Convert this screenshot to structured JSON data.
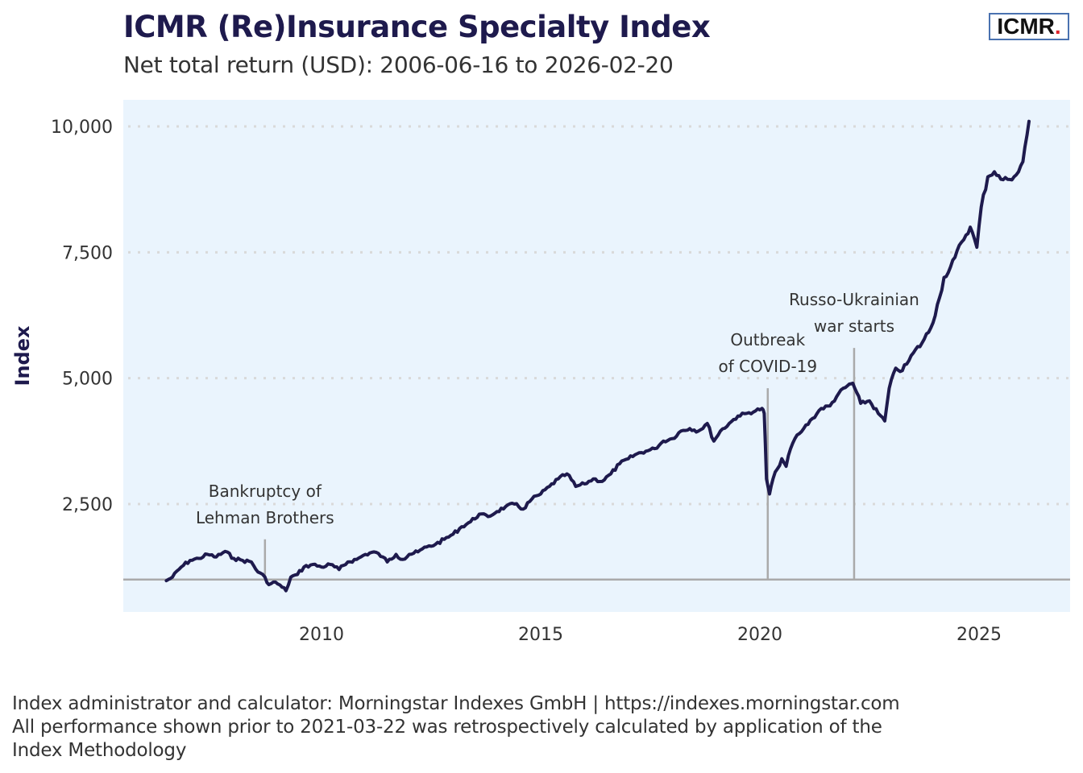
{
  "header": {
    "title": "ICMR (Re)Insurance Specialty Index",
    "subtitle": "Net total return (USD): 2006-06-16 to 2026-02-20",
    "logo_text": "ICMR",
    "logo_dot": "."
  },
  "footer": {
    "lines": [
      "Index administrator and calculator: Morningstar Indexes GmbH | https://indexes.morningstar.com",
      "All performance shown prior to 2021-03-22 was retrospectively calculated by application of the",
      "Index Methodology"
    ]
  },
  "colors": {
    "series": "#1e1a4d",
    "plot_background": "#eaf4fd",
    "gridline": "#d9d9d9",
    "event_line": "#aaaaaa",
    "baseline": "#aaaaaa",
    "logo_border": "#4a72b0",
    "logo_dot": "#e0242b"
  },
  "chart_data": {
    "type": "line",
    "title": "ICMR (Re)Insurance Specialty Index",
    "subtitle": "Net total return (USD): 2006-06-16 to 2026-02-20",
    "xlabel": "",
    "ylabel": "Index",
    "xlim": [
      2005.8,
      2027.4
    ],
    "ylim": [
      350,
      10550
    ],
    "x_ticks": [
      2010,
      2015,
      2020,
      2025
    ],
    "x_tick_labels": [
      "2010",
      "2015",
      "2020",
      "2025"
    ],
    "y_ticks": [
      2500,
      5000,
      7500,
      10000
    ],
    "y_tick_labels": [
      "2,500",
      "5,000",
      "7,500",
      "10,000"
    ],
    "grid": "horizontal dotted",
    "baseline": 1000,
    "legend": "none",
    "series": [
      {
        "name": "ICMR (Re)Insurance Specialty Index",
        "x": [
          2006.46,
          2006.6,
          2006.8,
          2007.0,
          2007.2,
          2007.4,
          2007.6,
          2007.8,
          2008.0,
          2008.2,
          2008.4,
          2008.55,
          2008.71,
          2008.8,
          2008.95,
          2009.1,
          2009.19,
          2009.3,
          2009.45,
          2009.6,
          2009.8,
          2010.0,
          2010.2,
          2010.4,
          2010.6,
          2010.8,
          2011.0,
          2011.2,
          2011.4,
          2011.5,
          2011.7,
          2011.85,
          2012.0,
          2012.2,
          2012.4,
          2012.6,
          2012.8,
          2013.0,
          2013.2,
          2013.4,
          2013.6,
          2013.8,
          2014.0,
          2014.2,
          2014.4,
          2014.6,
          2014.8,
          2015.0,
          2015.2,
          2015.4,
          2015.6,
          2015.8,
          2016.0,
          2016.2,
          2016.4,
          2016.6,
          2016.8,
          2017.0,
          2017.2,
          2017.4,
          2017.6,
          2017.8,
          2018.0,
          2018.2,
          2018.4,
          2018.6,
          2018.8,
          2018.95,
          2019.1,
          2019.3,
          2019.5,
          2019.7,
          2019.9,
          2020.05,
          2020.1,
          2020.15,
          2020.22,
          2020.3,
          2020.4,
          2020.5,
          2020.6,
          2020.7,
          2020.8,
          2020.9,
          2021.0,
          2021.2,
          2021.4,
          2021.6,
          2021.8,
          2022.0,
          2022.12,
          2022.3,
          2022.5,
          2022.7,
          2022.85,
          2022.95,
          2023.1,
          2023.25,
          2023.4,
          2023.5,
          2023.7,
          2023.9,
          2024.1,
          2024.2,
          2024.3,
          2024.45,
          2024.6,
          2024.8,
          2024.95,
          2025.05,
          2025.2,
          2025.35,
          2025.5,
          2025.65,
          2025.8,
          2025.9,
          2026.0,
          2026.14
        ],
        "values": [
          980,
          1050,
          1250,
          1380,
          1420,
          1500,
          1450,
          1560,
          1420,
          1380,
          1350,
          1150,
          1050,
          900,
          950,
          850,
          780,
          1050,
          1100,
          1250,
          1300,
          1250,
          1300,
          1200,
          1350,
          1400,
          1500,
          1550,
          1450,
          1350,
          1500,
          1400,
          1500,
          1550,
          1650,
          1700,
          1800,
          1900,
          2050,
          2150,
          2300,
          2250,
          2350,
          2450,
          2500,
          2400,
          2600,
          2700,
          2850,
          3000,
          3100,
          2850,
          2900,
          3000,
          2950,
          3100,
          3300,
          3400,
          3500,
          3550,
          3600,
          3750,
          3800,
          3950,
          4000,
          3950,
          4100,
          3750,
          3950,
          4100,
          4250,
          4300,
          4350,
          4400,
          4300,
          3000,
          2700,
          3000,
          3200,
          3400,
          3250,
          3600,
          3800,
          3900,
          4000,
          4200,
          4400,
          4450,
          4700,
          4850,
          4900,
          4500,
          4550,
          4300,
          4150,
          4800,
          5200,
          5150,
          5350,
          5500,
          5700,
          6000,
          6600,
          7000,
          7100,
          7400,
          7700,
          8000,
          7600,
          8400,
          9000,
          9100,
          8950,
          8950,
          9000,
          9100,
          9300,
          10100
        ]
      }
    ],
    "annotations": [
      {
        "x": 2008.71,
        "lines": [
          "Bankruptcy of",
          "Lehman Brothers"
        ],
        "line_top_value": 1800
      },
      {
        "x": 2020.18,
        "lines": [
          "Outbreak",
          "of COVID-19"
        ],
        "line_top_value": 4800
      },
      {
        "x": 2022.15,
        "lines": [
          "Russo-Ukrainian",
          "war starts"
        ],
        "line_top_value": 5600
      }
    ]
  }
}
